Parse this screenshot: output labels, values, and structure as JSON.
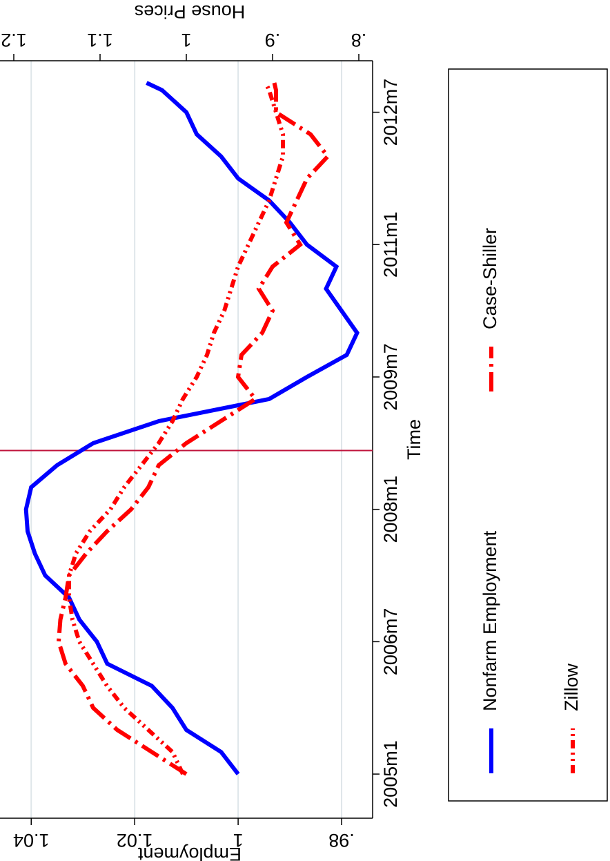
{
  "chart_data": {
    "type": "line",
    "x_label": "Time",
    "y_label": "Employment",
    "y2_label": "House Prices",
    "x": [
      "2005m1",
      "2005m4",
      "2005m7",
      "2005m10",
      "2006m1",
      "2006m4",
      "2006m7",
      "2006m10",
      "2007m1",
      "2007m4",
      "2007m7",
      "2007m10",
      "2008m1",
      "2008m4",
      "2008m7",
      "2008m10",
      "2009m1",
      "2009m4",
      "2009m7",
      "2009m10",
      "2010m1",
      "2010m4",
      "2010m7",
      "2010m10",
      "2011m1",
      "2011m4",
      "2011m7",
      "2011m10",
      "2012m1",
      "2012m4",
      "2012m7",
      "2012m10",
      "2012m11"
    ],
    "series": [
      {
        "name": "Nonfarm Employment",
        "color": "#0000ff",
        "dash": "solid",
        "axis": "y",
        "values": [
          1.0,
          1.0033,
          1.01,
          1.0127,
          1.0167,
          1.0253,
          1.0273,
          1.0307,
          1.0327,
          1.0373,
          1.0393,
          1.0407,
          1.041,
          1.04,
          1.035,
          1.028,
          1.0153,
          0.994,
          0.9867,
          0.979,
          0.977,
          0.98,
          0.983,
          0.981,
          0.9867,
          0.99,
          0.994,
          1.0,
          1.0033,
          1.008,
          1.01,
          1.0147,
          1.0177
        ]
      },
      {
        "name": "Case-Shiller",
        "color": "#ff0000",
        "dash": "dash-dot",
        "axis": "y2",
        "values": [
          1.0,
          1.04,
          1.08,
          1.108,
          1.12,
          1.14,
          1.148,
          1.146,
          1.14,
          1.136,
          1.116,
          1.092,
          1.064,
          1.044,
          1.032,
          1.0,
          0.96,
          0.92,
          0.94,
          0.936,
          0.912,
          0.9,
          0.916,
          0.9,
          0.868,
          0.884,
          0.872,
          0.86,
          0.836,
          0.856,
          0.896,
          0.896,
          0.898
        ]
      },
      {
        "name": "Zillow",
        "color": "#ff0000",
        "dash": "dash-dot-dot",
        "axis": "y2",
        "values": [
          1.004,
          1.016,
          1.044,
          1.072,
          1.092,
          1.108,
          1.124,
          1.132,
          1.136,
          1.136,
          1.128,
          1.112,
          1.088,
          1.072,
          1.052,
          1.032,
          1.016,
          1.004,
          0.988,
          0.976,
          0.968,
          0.956,
          0.948,
          0.94,
          0.928,
          0.916,
          0.904,
          0.896,
          0.888,
          0.888,
          0.896,
          0.904,
          0.908
        ]
      }
    ],
    "xlim": [
      "2004m7",
      "2013m2"
    ],
    "xticks": [
      "2005m1",
      "2006m7",
      "2008m1",
      "2009m7",
      "2011m1",
      "2012m7"
    ],
    "ylim": [
      0.974,
      1.0447
    ],
    "yticks": [
      {
        "value": 0.98,
        "label": ".98"
      },
      1,
      1.02,
      1.04
    ],
    "y2lim": [
      0.784,
      1.208
    ],
    "y2ticks": [
      {
        "value": 0.8,
        "label": ".8"
      },
      {
        "value": 0.9,
        "label": ".9"
      },
      1,
      1.1,
      1.2
    ],
    "xline": "2008m9",
    "xline_color": "#c0143c",
    "grid": true,
    "legend": "bottom",
    "rotation": -90
  }
}
